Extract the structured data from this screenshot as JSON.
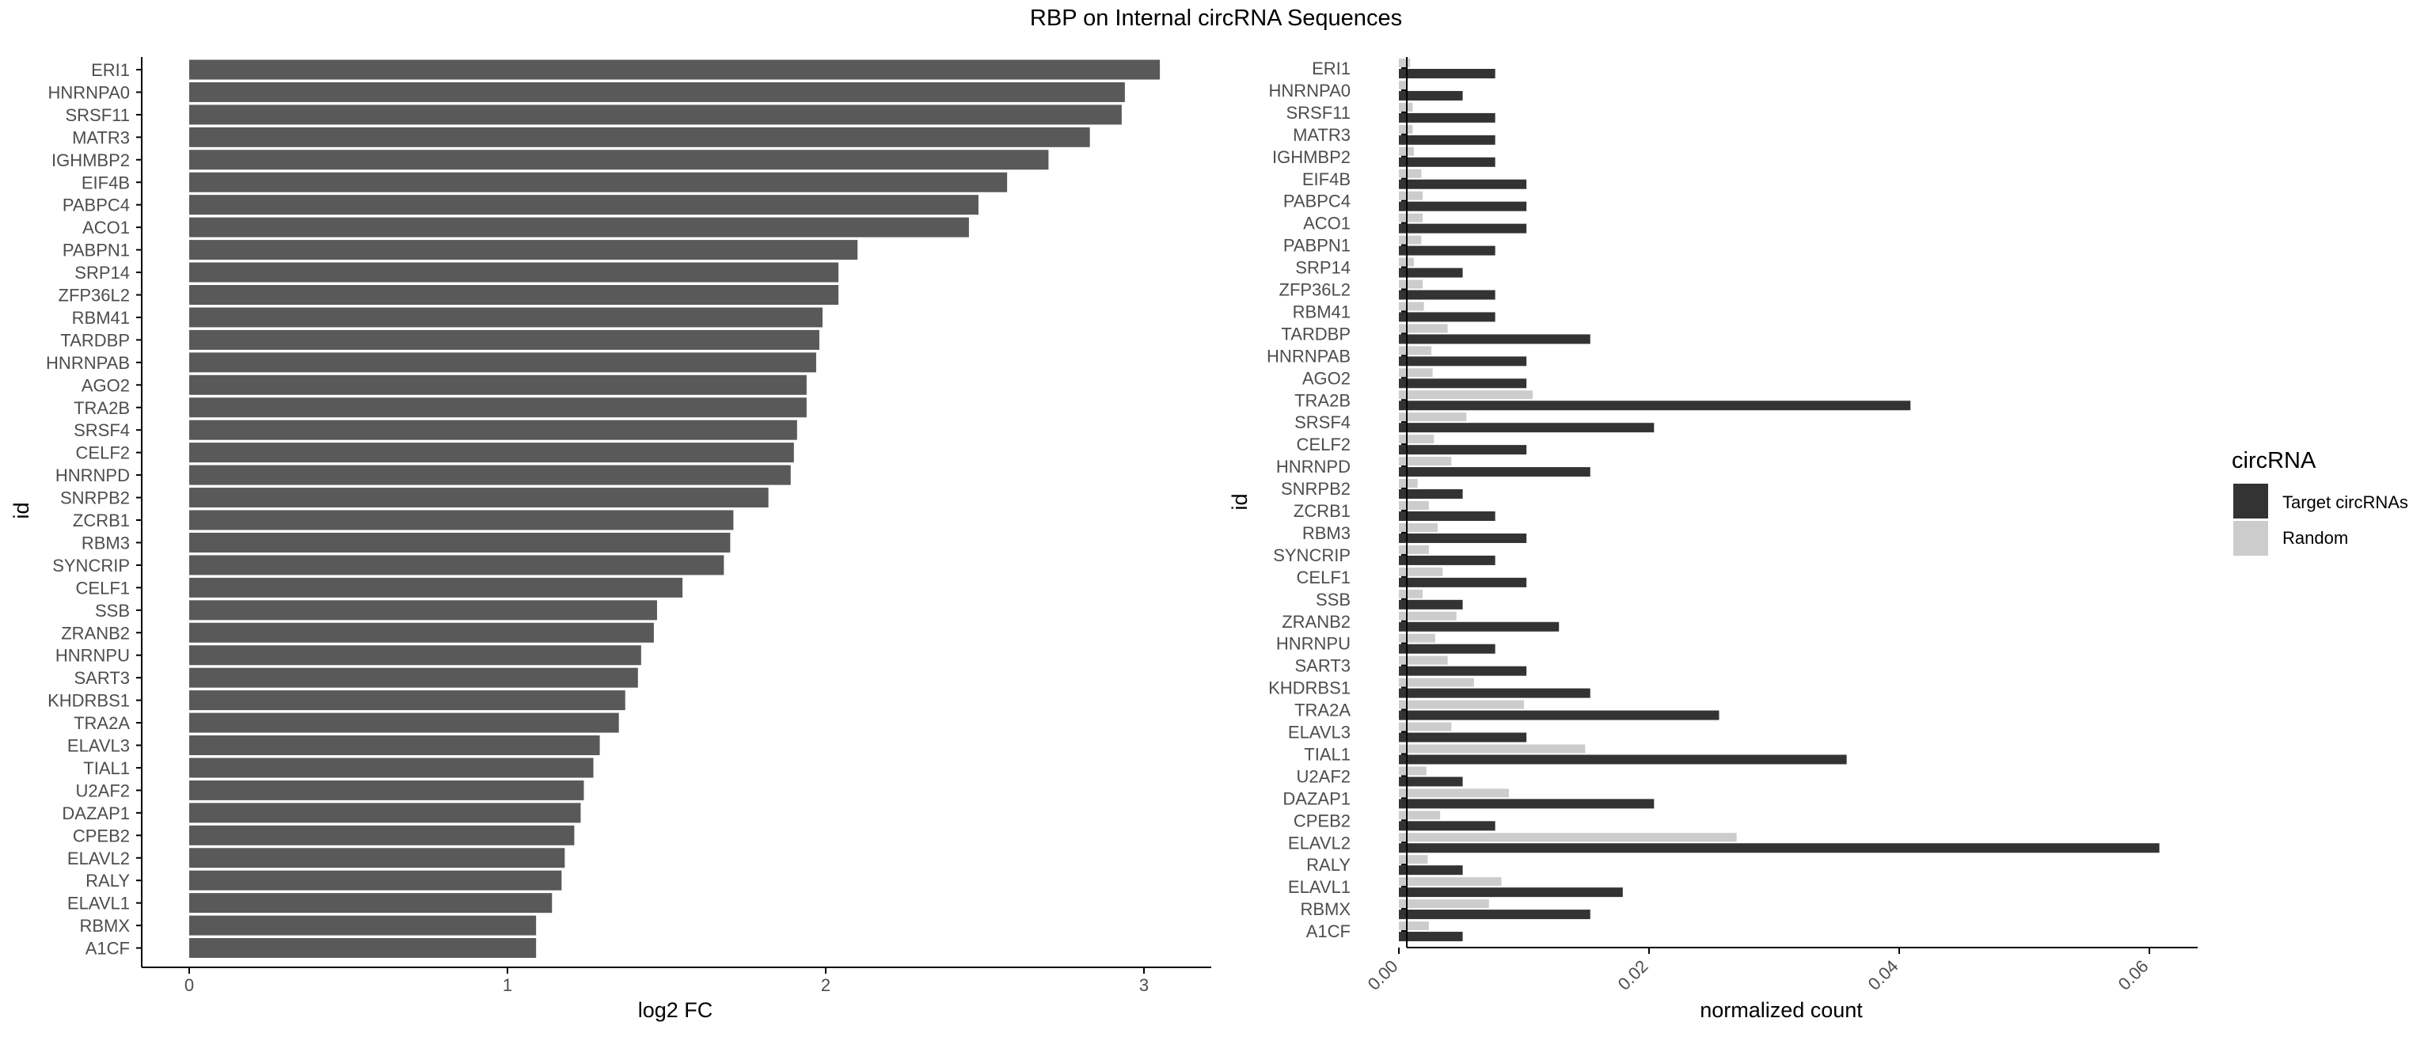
{
  "figure": {
    "title": "RBP on Internal circRNA Sequences"
  },
  "colors": {
    "bar": "#595959",
    "target": "#333333",
    "random": "#cccccc",
    "axis": "#000000",
    "tick_text": "#4d4d4d"
  },
  "chart_data": [
    {
      "type": "bar",
      "orientation": "horizontal",
      "xlabel": "log2 FC",
      "ylabel": "id",
      "xlim": [
        0,
        3.2
      ],
      "xticks": [
        0,
        1,
        2,
        3
      ],
      "grid": false,
      "categories": [
        "ERI1",
        "HNRNPA0",
        "SRSF11",
        "MATR3",
        "IGHMBP2",
        "EIF4B",
        "PABPC4",
        "ACO1",
        "PABPN1",
        "SRP14",
        "ZFP36L2",
        "RBM41",
        "TARDBP",
        "HNRNPAB",
        "AGO2",
        "TRA2B",
        "SRSF4",
        "CELF2",
        "HNRNPD",
        "SNRPB2",
        "ZCRB1",
        "RBM3",
        "SYNCRIP",
        "CELF1",
        "SSB",
        "ZRANB2",
        "HNRNPU",
        "SART3",
        "KHDRBS1",
        "TRA2A",
        "ELAVL3",
        "TIAL1",
        "U2AF2",
        "DAZAP1",
        "CPEB2",
        "ELAVL2",
        "RALY",
        "ELAVL1",
        "RBMX",
        "A1CF"
      ],
      "values": [
        3.05,
        2.94,
        2.93,
        2.83,
        2.7,
        2.57,
        2.48,
        2.45,
        2.1,
        2.04,
        2.04,
        1.99,
        1.98,
        1.97,
        1.94,
        1.94,
        1.91,
        1.9,
        1.89,
        1.82,
        1.71,
        1.7,
        1.68,
        1.55,
        1.47,
        1.46,
        1.42,
        1.41,
        1.37,
        1.35,
        1.29,
        1.27,
        1.24,
        1.23,
        1.21,
        1.18,
        1.17,
        1.14,
        1.09,
        1.09
      ]
    },
    {
      "type": "bar",
      "orientation": "horizontal",
      "xlabel": "normalized count",
      "ylabel": "id",
      "xlim": [
        0,
        0.064
      ],
      "xticks": [
        "0.00",
        "0.02",
        "0.04",
        "0.06"
      ],
      "grid": false,
      "legend_placement": "right",
      "legend_title": "circRNA",
      "categories": [
        "ERI1",
        "HNRNPA0",
        "SRSF11",
        "MATR3",
        "IGHMBP2",
        "EIF4B",
        "PABPC4",
        "ACO1",
        "PABPN1",
        "SRP14",
        "ZFP36L2",
        "RBM41",
        "TARDBP",
        "HNRNPAB",
        "AGO2",
        "TRA2B",
        "SRSF4",
        "CELF2",
        "HNRNPD",
        "SNRPB2",
        "ZCRB1",
        "RBM3",
        "SYNCRIP",
        "CELF1",
        "SSB",
        "ZRANB2",
        "HNRNPU",
        "SART3",
        "KHDRBS1",
        "TRA2A",
        "ELAVL3",
        "TIAL1",
        "U2AF2",
        "DAZAP1",
        "CPEB2",
        "ELAVL2",
        "RALY",
        "ELAVL1",
        "RBMX",
        "A1CF"
      ],
      "series": [
        {
          "name": "Target circRNAs",
          "values": [
            0.0077,
            0.0051,
            0.0077,
            0.0077,
            0.0077,
            0.0102,
            0.0102,
            0.0102,
            0.0077,
            0.0051,
            0.0077,
            0.0077,
            0.0153,
            0.0102,
            0.0102,
            0.0409,
            0.0204,
            0.0102,
            0.0153,
            0.0051,
            0.0077,
            0.0102,
            0.0077,
            0.0102,
            0.0051,
            0.0128,
            0.0077,
            0.0102,
            0.0153,
            0.0256,
            0.0102,
            0.0358,
            0.0051,
            0.0204,
            0.0077,
            0.0608,
            0.0051,
            0.0179,
            0.0153,
            0.0051
          ]
        },
        {
          "name": "Random",
          "values": [
            0.0009,
            0.0006,
            0.0011,
            0.0011,
            0.0012,
            0.0018,
            0.0019,
            0.0019,
            0.0018,
            0.0012,
            0.0019,
            0.002,
            0.0039,
            0.0026,
            0.0027,
            0.0107,
            0.0054,
            0.0028,
            0.0042,
            0.0015,
            0.0024,
            0.0031,
            0.0024,
            0.0035,
            0.0019,
            0.0046,
            0.0029,
            0.0039,
            0.006,
            0.01,
            0.0042,
            0.0149,
            0.0022,
            0.0088,
            0.0033,
            0.027,
            0.0023,
            0.0082,
            0.0072,
            0.0024
          ]
        }
      ]
    }
  ]
}
